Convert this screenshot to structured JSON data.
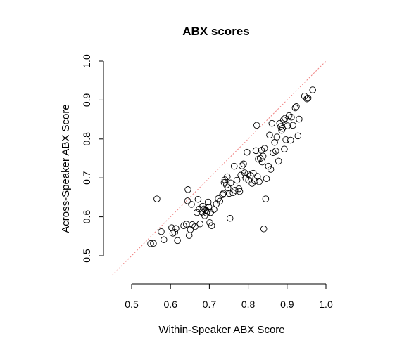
{
  "chart_data": {
    "type": "scatter",
    "title": "ABX scores",
    "xlabel": "Within-Speaker ABX Score",
    "ylabel": "Across-Speaker ABX Score",
    "xlim": [
      0.45,
      1.0
    ],
    "ylim": [
      0.45,
      1.0
    ],
    "xticks": [
      "0.5",
      "0.6",
      "0.7",
      "0.8",
      "0.9",
      "1.0"
    ],
    "yticks": [
      "0.5",
      "0.6",
      "0.7",
      "0.8",
      "0.9",
      "1.0"
    ],
    "grid": false,
    "reference_line": {
      "from": [
        0.45,
        0.45
      ],
      "to": [
        1.0,
        1.0
      ],
      "style": "dotted",
      "color": "#f08080"
    },
    "series": [
      {
        "marker": "open-circle",
        "color": "#000000",
        "points": [
          [
            0.549,
            0.531
          ],
          [
            0.556,
            0.532
          ],
          [
            0.565,
            0.646
          ],
          [
            0.576,
            0.562
          ],
          [
            0.583,
            0.541
          ],
          [
            0.603,
            0.572
          ],
          [
            0.606,
            0.558
          ],
          [
            0.611,
            0.56
          ],
          [
            0.614,
            0.57
          ],
          [
            0.618,
            0.539
          ],
          [
            0.634,
            0.577
          ],
          [
            0.641,
            0.581
          ],
          [
            0.644,
            0.641
          ],
          [
            0.645,
            0.67
          ],
          [
            0.648,
            0.552
          ],
          [
            0.651,
            0.567
          ],
          [
            0.654,
            0.632
          ],
          [
            0.656,
            0.58
          ],
          [
            0.663,
            0.575
          ],
          [
            0.668,
            0.611
          ],
          [
            0.671,
            0.645
          ],
          [
            0.674,
            0.62
          ],
          [
            0.676,
            0.582
          ],
          [
            0.681,
            0.612
          ],
          [
            0.683,
            0.627
          ],
          [
            0.686,
            0.62
          ],
          [
            0.688,
            0.603
          ],
          [
            0.691,
            0.617
          ],
          [
            0.693,
            0.61
          ],
          [
            0.695,
            0.614
          ],
          [
            0.697,
            0.638
          ],
          [
            0.699,
            0.625
          ],
          [
            0.701,
            0.585
          ],
          [
            0.703,
            0.611
          ],
          [
            0.706,
            0.577
          ],
          [
            0.712,
            0.619
          ],
          [
            0.718,
            0.633
          ],
          [
            0.723,
            0.647
          ],
          [
            0.727,
            0.64
          ],
          [
            0.734,
            0.657
          ],
          [
            0.736,
            0.66
          ],
          [
            0.738,
            0.688
          ],
          [
            0.74,
            0.695
          ],
          [
            0.744,
            0.682
          ],
          [
            0.746,
            0.703
          ],
          [
            0.748,
            0.674
          ],
          [
            0.751,
            0.66
          ],
          [
            0.753,
            0.596
          ],
          [
            0.755,
            0.687
          ],
          [
            0.761,
            0.662
          ],
          [
            0.764,
            0.73
          ],
          [
            0.766,
            0.668
          ],
          [
            0.771,
            0.694
          ],
          [
            0.776,
            0.672
          ],
          [
            0.778,
            0.665
          ],
          [
            0.781,
            0.707
          ],
          [
            0.784,
            0.731
          ],
          [
            0.788,
            0.736
          ],
          [
            0.791,
            0.713
          ],
          [
            0.794,
            0.699
          ],
          [
            0.797,
            0.766
          ],
          [
            0.799,
            0.71
          ],
          [
            0.801,
            0.694
          ],
          [
            0.806,
            0.706
          ],
          [
            0.81,
            0.686
          ],
          [
            0.813,
            0.712
          ],
          [
            0.817,
            0.692
          ],
          [
            0.82,
            0.77
          ],
          [
            0.822,
            0.835
          ],
          [
            0.824,
            0.704
          ],
          [
            0.826,
            0.748
          ],
          [
            0.828,
            0.69
          ],
          [
            0.831,
            0.75
          ],
          [
            0.834,
            0.771
          ],
          [
            0.836,
            0.741
          ],
          [
            0.838,
            0.756
          ],
          [
            0.84,
            0.569
          ],
          [
            0.842,
            0.776
          ],
          [
            0.845,
            0.646
          ],
          [
            0.847,
            0.698
          ],
          [
            0.852,
            0.73
          ],
          [
            0.855,
            0.81
          ],
          [
            0.858,
            0.722
          ],
          [
            0.861,
            0.84
          ],
          [
            0.864,
            0.765
          ],
          [
            0.868,
            0.791
          ],
          [
            0.871,
            0.769
          ],
          [
            0.874,
            0.805
          ],
          [
            0.878,
            0.743
          ],
          [
            0.881,
            0.84
          ],
          [
            0.884,
            0.832
          ],
          [
            0.886,
            0.822
          ],
          [
            0.888,
            0.827
          ],
          [
            0.891,
            0.849
          ],
          [
            0.893,
            0.774
          ],
          [
            0.895,
            0.853
          ],
          [
            0.897,
            0.798
          ],
          [
            0.901,
            0.834
          ],
          [
            0.905,
            0.86
          ],
          [
            0.909,
            0.797
          ],
          [
            0.911,
            0.856
          ],
          [
            0.915,
            0.835
          ],
          [
            0.921,
            0.88
          ],
          [
            0.924,
            0.883
          ],
          [
            0.928,
            0.808
          ],
          [
            0.931,
            0.851
          ],
          [
            0.945,
            0.91
          ],
          [
            0.951,
            0.903
          ],
          [
            0.954,
            0.905
          ],
          [
            0.966,
            0.926
          ]
        ]
      }
    ]
  }
}
